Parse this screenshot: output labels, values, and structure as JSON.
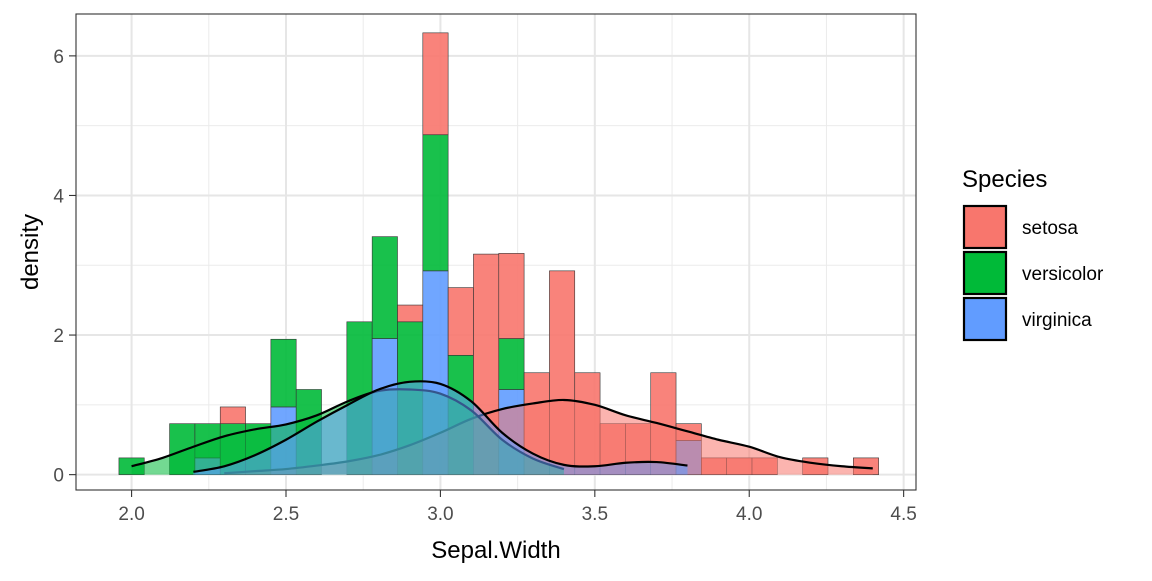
{
  "chart_data": {
    "type": "histogram+density",
    "xlabel": "Sepal.Width",
    "ylabel": "density",
    "xlim": [
      1.82,
      4.54
    ],
    "ylim": [
      -0.22,
      6.6
    ],
    "xticks": [
      2.0,
      2.5,
      3.0,
      3.5,
      4.0,
      4.5
    ],
    "xtick_labels": [
      "2.0",
      "2.5",
      "3.0",
      "3.5",
      "4.0",
      "4.5"
    ],
    "yticks": [
      0,
      2,
      4,
      6
    ],
    "ytick_labels": [
      "0",
      "2",
      "4",
      "6"
    ],
    "grid": true,
    "bin_width": 0.082,
    "bin_centers": [
      2.0,
      2.082,
      2.164,
      2.246,
      2.328,
      2.41,
      2.492,
      2.574,
      2.656,
      2.738,
      2.82,
      2.902,
      2.984,
      3.066,
      3.148,
      3.23,
      3.312,
      3.394,
      3.476,
      3.558,
      3.64,
      3.722,
      3.804,
      3.886,
      3.968,
      4.05,
      4.132,
      4.214,
      4.296,
      4.378
    ],
    "bar_position": "stack",
    "series": [
      {
        "name": "virginica",
        "color": "#619CFF",
        "bar_values": [
          0,
          0,
          0,
          0.24,
          0,
          0,
          0.97,
          0,
          0,
          0,
          1.95,
          0,
          2.92,
          0,
          0,
          1.22,
          0,
          0,
          0,
          0,
          0,
          0,
          0.49,
          0,
          0,
          0,
          0,
          0,
          0,
          0
        ]
      },
      {
        "name": "versicolor",
        "color": "#00BA38",
        "bar_values": [
          0.24,
          0,
          0.73,
          0.49,
          0.73,
          0.73,
          0.97,
          1.22,
          0,
          2.19,
          1.46,
          2.19,
          1.95,
          1.71,
          0,
          0.73,
          0,
          0,
          0,
          0,
          0,
          0,
          0,
          0,
          0,
          0,
          0,
          0,
          0,
          0
        ]
      },
      {
        "name": "setosa",
        "color": "#F8766D",
        "bar_values": [
          0,
          0,
          0,
          0,
          0.24,
          0,
          0,
          0,
          0,
          0,
          0,
          0.24,
          1.46,
          0.97,
          3.16,
          1.22,
          1.46,
          2.92,
          1.46,
          0.73,
          0.73,
          1.46,
          0.24,
          0.24,
          0.24,
          0.24,
          0,
          0.24,
          0,
          0.24
        ]
      }
    ],
    "density_x": [
      2.0,
      2.1,
      2.2,
      2.3,
      2.4,
      2.5,
      2.6,
      2.7,
      2.8,
      2.9,
      3.0,
      3.1,
      3.2,
      3.3,
      3.4,
      3.5,
      3.6,
      3.7,
      3.8,
      3.9,
      4.0,
      4.1,
      4.2,
      4.3,
      4.4
    ],
    "density_series": [
      {
        "name": "setosa",
        "x_range": [
          2.3,
          4.4
        ],
        "values": [
          null,
          null,
          null,
          0.02,
          0.05,
          0.08,
          0.13,
          0.19,
          0.28,
          0.42,
          0.6,
          0.8,
          0.94,
          1.02,
          1.07,
          1.0,
          0.85,
          0.74,
          0.62,
          0.5,
          0.4,
          0.25,
          0.17,
          0.12,
          0.09
        ]
      },
      {
        "name": "versicolor",
        "x_range": [
          2.0,
          3.4
        ],
        "values": [
          0.12,
          0.24,
          0.4,
          0.55,
          0.65,
          0.72,
          0.85,
          1.05,
          1.2,
          1.22,
          1.16,
          0.92,
          0.5,
          0.23,
          0.08,
          null,
          null,
          null,
          null,
          null,
          null,
          null,
          null,
          null,
          null
        ]
      },
      {
        "name": "virginica",
        "x_range": [
          2.2,
          3.8
        ],
        "values": [
          null,
          null,
          0.04,
          0.12,
          0.28,
          0.5,
          0.76,
          1.0,
          1.22,
          1.33,
          1.3,
          1.05,
          0.6,
          0.3,
          0.14,
          0.12,
          0.17,
          0.18,
          0.13,
          null,
          null,
          null,
          null,
          null,
          null
        ]
      }
    ],
    "legend": {
      "title": "Species",
      "position": "right",
      "entries": [
        {
          "label": "setosa",
          "color": "#F8766D"
        },
        {
          "label": "versicolor",
          "color": "#00BA38"
        },
        {
          "label": "virginica",
          "color": "#619CFF"
        }
      ]
    }
  }
}
